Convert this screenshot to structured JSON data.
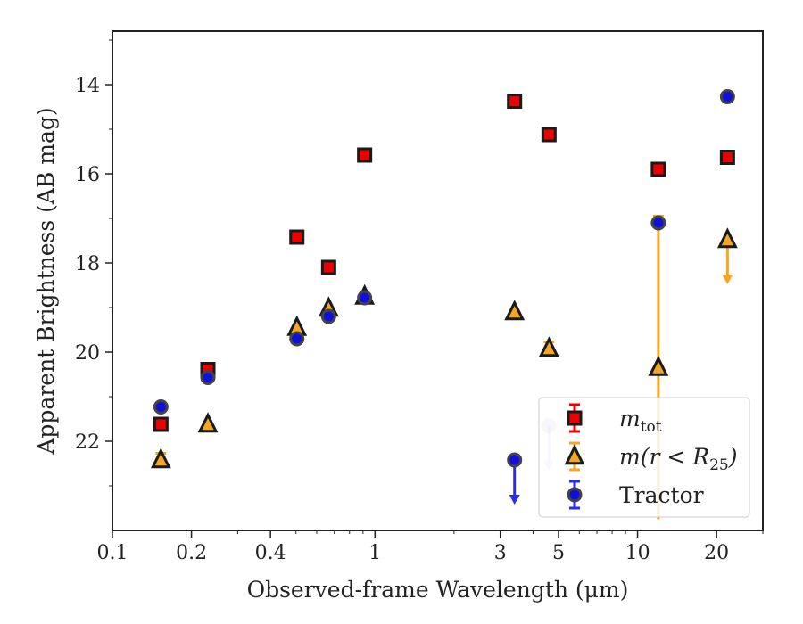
{
  "chart_data": {
    "type": "scatter",
    "xlabel": "Observed-frame Wavelength (μm)",
    "ylabel": "Apparent Brightness (AB mag)",
    "xscale": "log",
    "xlim": [
      0.1,
      30
    ],
    "ylim": [
      24,
      12.8
    ],
    "y_inverted": true,
    "x_ticks": [
      {
        "value": 0.1,
        "label": "0.1"
      },
      {
        "value": 0.2,
        "label": "0.2"
      },
      {
        "value": 0.4,
        "label": "0.4"
      },
      {
        "value": 1,
        "label": "1"
      },
      {
        "value": 3,
        "label": "3"
      },
      {
        "value": 5,
        "label": "5"
      },
      {
        "value": 10,
        "label": "10"
      },
      {
        "value": 20,
        "label": "20"
      }
    ],
    "y_ticks": [
      {
        "value": 14,
        "label": "14"
      },
      {
        "value": 16,
        "label": "16"
      },
      {
        "value": 18,
        "label": "18"
      },
      {
        "value": 20,
        "label": "20"
      },
      {
        "value": 22,
        "label": "22"
      }
    ],
    "grid": false,
    "legend_position": "lower-right",
    "series": [
      {
        "key": "mtot",
        "legend": {
          "main": "m",
          "sub": "tot",
          "tail": ""
        },
        "marker": "square",
        "face": "#ee0000",
        "edge": "#1a1a1a",
        "errorColor": "#ee0000",
        "points": [
          {
            "x": 0.153,
            "y": 21.62
          },
          {
            "x": 0.231,
            "y": 20.39
          },
          {
            "x": 0.504,
            "y": 17.42
          },
          {
            "x": 0.666,
            "y": 18.1
          },
          {
            "x": 0.913,
            "y": 15.58
          },
          {
            "x": 3.4,
            "y": 14.37
          },
          {
            "x": 4.6,
            "y": 15.12
          },
          {
            "x": 12.0,
            "y": 15.9
          },
          {
            "x": 22.0,
            "y": 15.63
          }
        ]
      },
      {
        "key": "mr25",
        "legend": {
          "main": "m(r < R",
          "sub": "25",
          "tail": ")"
        },
        "marker": "triangle",
        "face": "#f5a623",
        "edge": "#1a1a1a",
        "errorColor": "#f5a623",
        "points": [
          {
            "x": 0.153,
            "y": 22.42,
            "err": 0.15
          },
          {
            "x": 0.231,
            "y": 21.62
          },
          {
            "x": 0.504,
            "y": 19.45
          },
          {
            "x": 0.666,
            "y": 19.02
          },
          {
            "x": 0.913,
            "y": 18.75
          },
          {
            "x": 3.4,
            "y": 19.1
          },
          {
            "x": 4.6,
            "y": 19.92,
            "err": 0.15
          },
          {
            "x": 12.0,
            "y": 20.35,
            "err": 3.4
          },
          {
            "x": 22.0,
            "y": 17.48,
            "upper_limit": true
          }
        ]
      },
      {
        "key": "tractor",
        "legend": {
          "main": "Tractor",
          "sub": "",
          "tail": ""
        },
        "marker": "circle",
        "face": "#1010dd",
        "edge": "#444444",
        "errorColor": "#2b2bee",
        "points": [
          {
            "x": 0.153,
            "y": 21.23
          },
          {
            "x": 0.231,
            "y": 20.57
          },
          {
            "x": 0.504,
            "y": 19.7
          },
          {
            "x": 0.666,
            "y": 19.2
          },
          {
            "x": 0.913,
            "y": 18.78
          },
          {
            "x": 3.4,
            "y": 22.42,
            "upper_limit": true
          },
          {
            "x": 4.6,
            "y": 21.65,
            "upper_limit": true,
            "faded": true
          },
          {
            "x": 12.0,
            "y": 17.1
          },
          {
            "x": 22.0,
            "y": 14.27
          }
        ]
      }
    ]
  }
}
